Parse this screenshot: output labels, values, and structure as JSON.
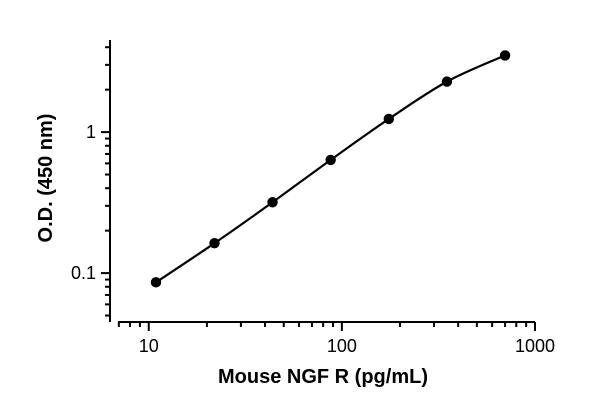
{
  "chart_data": {
    "type": "scatter",
    "xlabel": "Mouse NGF R (pg/mL)",
    "ylabel": "O.D. (450 nm)",
    "xscale": "log",
    "yscale": "log",
    "xlim": [
      6.3,
      1000
    ],
    "ylim": [
      0.045,
      4.5
    ],
    "xticks": [
      10,
      100,
      1000
    ],
    "xtick_labels": [
      "10",
      "100",
      "1000"
    ],
    "yticks": [
      0.1,
      1
    ],
    "ytick_labels": [
      "0.1",
      "1"
    ],
    "grid": false,
    "series": [
      {
        "x": [
          10.9,
          21.9,
          43.75,
          87.5,
          175,
          350,
          700
        ],
        "y": [
          0.086,
          0.163,
          0.318,
          0.635,
          1.24,
          2.28,
          3.5
        ],
        "marker": "circle",
        "fit_line": true
      }
    ]
  }
}
